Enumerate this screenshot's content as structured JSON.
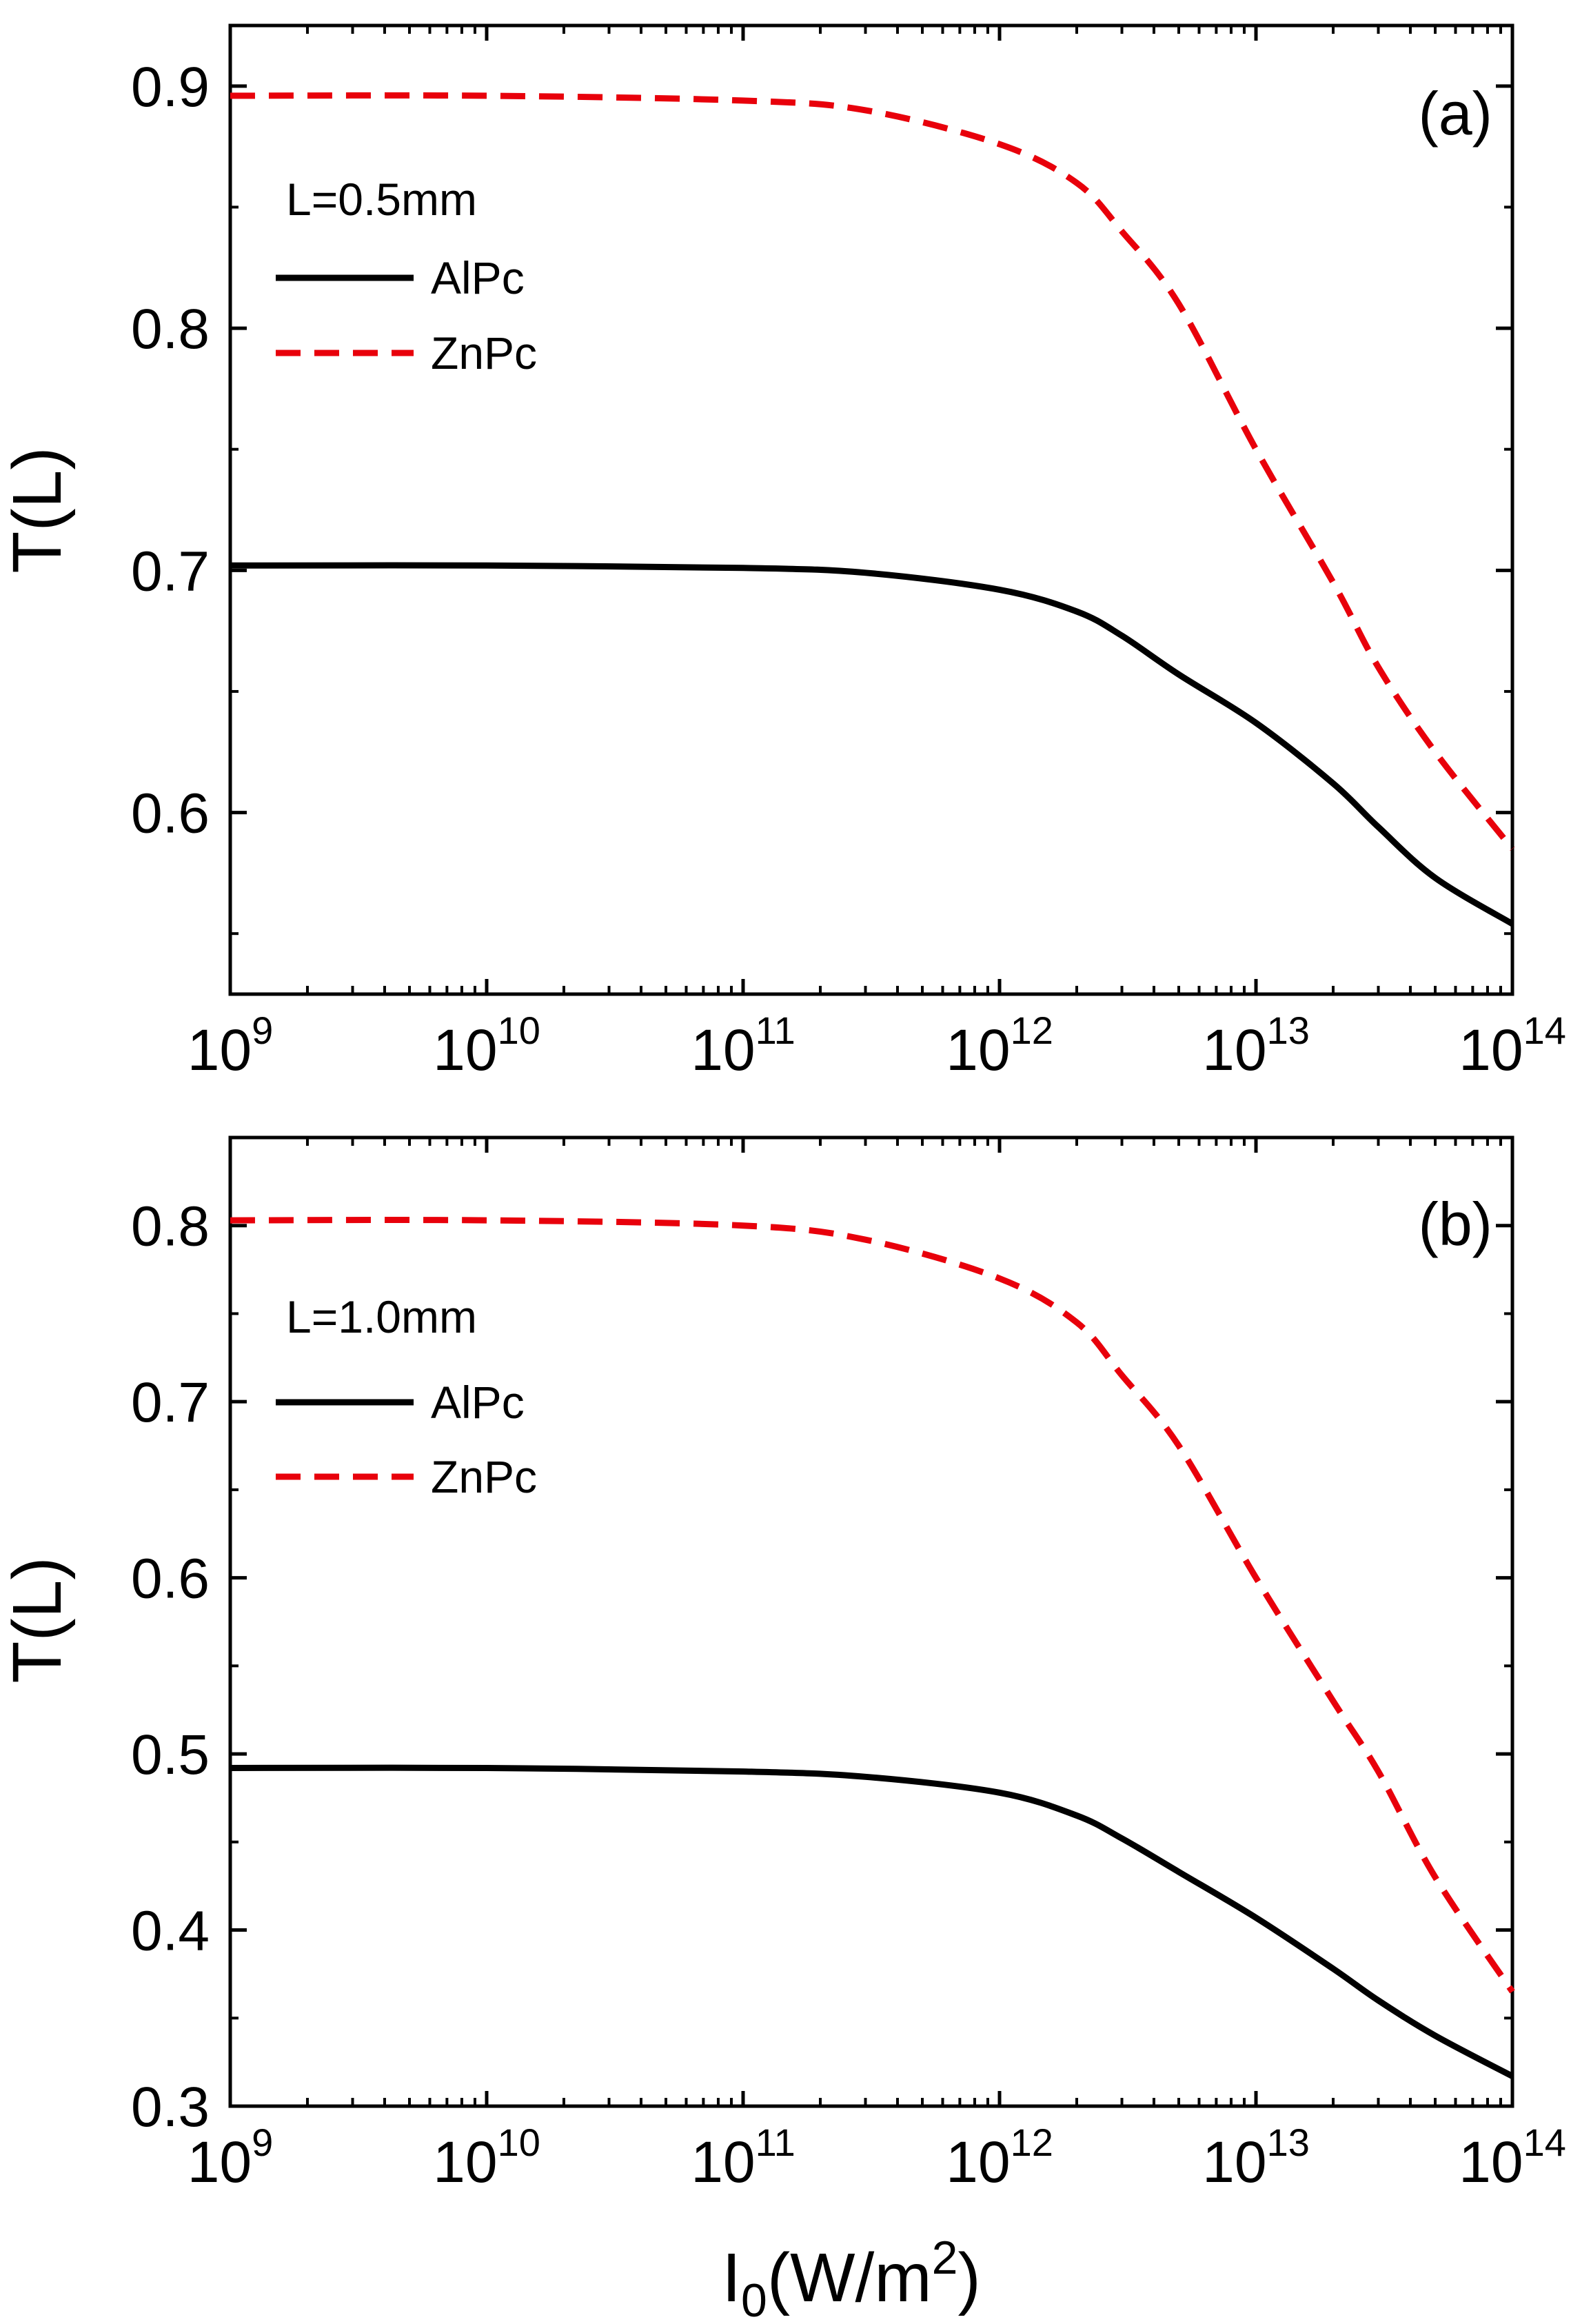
{
  "chart_data": [
    {
      "type": "line",
      "panel_label": "(a)",
      "annotation": "L=0.5mm",
      "xscale": "log",
      "xlim": [
        1000000000.0,
        100000000000000.0
      ],
      "ylim": [
        0.525,
        0.925
      ],
      "yticks": [
        0.6,
        0.7,
        0.8,
        0.9
      ],
      "ytick_labels": [
        "0.6",
        "0.7",
        "0.8",
        "0.9"
      ],
      "xticks": [
        1000000000.0,
        10000000000.0,
        100000000000.0,
        1000000000000.0,
        10000000000000.0,
        100000000000000.0
      ],
      "xtick_base": "10",
      "xtick_exponents": [
        "9",
        "10",
        "11",
        "12",
        "13",
        "14"
      ],
      "ylabel": "T(L)",
      "xlabel": "",
      "legend_position": "top-left",
      "series": [
        {
          "name": "AlPc",
          "style": "solid",
          "color": "#000000",
          "x": [
            1000000000.0,
            10000000000.0,
            100000000000.0,
            300000000000.0,
            1000000000000.0,
            2000000000000.0,
            3000000000000.0,
            5000000000000.0,
            10000000000000.0,
            20000000000000.0,
            30000000000000.0,
            50000000000000.0,
            100000000000000.0
          ],
          "y": [
            0.702,
            0.702,
            0.701,
            0.699,
            0.692,
            0.683,
            0.673,
            0.657,
            0.637,
            0.612,
            0.594,
            0.573,
            0.554
          ]
        },
        {
          "name": "ZnPc",
          "style": "dashed",
          "color": "#e8000b",
          "x": [
            1000000000.0,
            10000000000.0,
            100000000000.0,
            300000000000.0,
            1000000000000.0,
            2000000000000.0,
            3000000000000.0,
            5000000000000.0,
            10000000000000.0,
            20000000000000.0,
            30000000000000.0,
            50000000000000.0,
            100000000000000.0
          ],
          "y": [
            0.896,
            0.896,
            0.894,
            0.89,
            0.876,
            0.86,
            0.84,
            0.81,
            0.75,
            0.695,
            0.66,
            0.625,
            0.585
          ]
        }
      ]
    },
    {
      "type": "line",
      "panel_label": "(b)",
      "annotation": "L=1.0mm",
      "xscale": "log",
      "xlim": [
        1000000000.0,
        100000000000000.0
      ],
      "ylim": [
        0.3,
        0.85
      ],
      "yticks": [
        0.3,
        0.4,
        0.5,
        0.6,
        0.7,
        0.8
      ],
      "ytick_labels": [
        "0.3",
        "0.4",
        "0.5",
        "0.6",
        "0.7",
        "0.8"
      ],
      "xticks": [
        1000000000.0,
        10000000000.0,
        100000000000.0,
        1000000000000.0,
        10000000000000.0,
        100000000000000.0
      ],
      "xtick_base": "10",
      "xtick_exponents": [
        "9",
        "10",
        "11",
        "12",
        "13",
        "14"
      ],
      "ylabel": "T(L)",
      "xlabel": "I0(W/m2)",
      "xlabel_parts": {
        "main": "I",
        "sub": "0",
        "mid": "(W/m",
        "sup": "2",
        "end": ")"
      },
      "legend_position": "top-left",
      "series": [
        {
          "name": "AlPc",
          "style": "solid",
          "color": "#000000",
          "x": [
            1000000000.0,
            10000000000.0,
            100000000000.0,
            300000000000.0,
            1000000000000.0,
            2000000000000.0,
            3000000000000.0,
            5000000000000.0,
            10000000000000.0,
            20000000000000.0,
            30000000000000.0,
            50000000000000.0,
            100000000000000.0
          ],
          "y": [
            0.492,
            0.492,
            0.49,
            0.487,
            0.478,
            0.465,
            0.452,
            0.433,
            0.407,
            0.378,
            0.36,
            0.34,
            0.317
          ]
        },
        {
          "name": "ZnPc",
          "style": "dashed",
          "color": "#e8000b",
          "x": [
            1000000000.0,
            10000000000.0,
            100000000000.0,
            300000000000.0,
            1000000000000.0,
            2000000000000.0,
            3000000000000.0,
            5000000000000.0,
            10000000000000.0,
            20000000000000.0,
            30000000000000.0,
            50000000000000.0,
            100000000000000.0
          ],
          "y": [
            0.803,
            0.803,
            0.8,
            0.792,
            0.77,
            0.745,
            0.715,
            0.675,
            0.6,
            0.53,
            0.49,
            0.43,
            0.365
          ]
        }
      ]
    }
  ]
}
